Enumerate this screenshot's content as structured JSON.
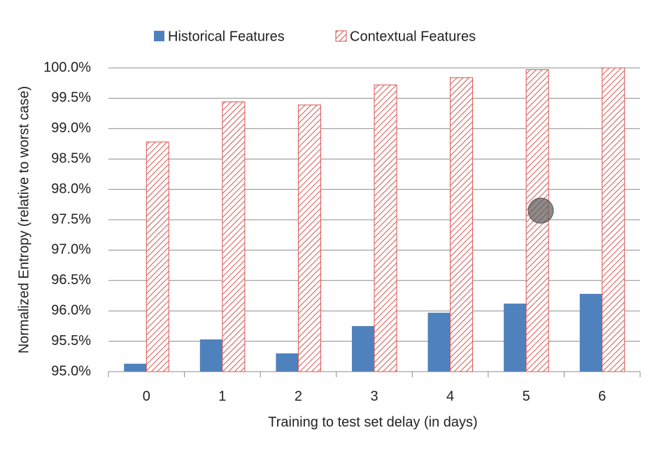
{
  "chart_data": {
    "type": "bar",
    "xlabel": "Training to test set delay (in days)",
    "ylabel": "Normalized Entropy (relative to worst case)",
    "categories": [
      "0",
      "1",
      "2",
      "3",
      "4",
      "5",
      "6"
    ],
    "series": [
      {
        "name": "Historical Features",
        "color": "#4f81bd",
        "values": [
          95.13,
          95.53,
          95.3,
          95.75,
          95.97,
          96.12,
          96.28
        ]
      },
      {
        "name": "Contextual Features",
        "color": "#d9534f",
        "pattern": "hatch",
        "values": [
          98.78,
          99.44,
          99.39,
          99.72,
          99.84,
          99.97,
          100.0
        ]
      }
    ],
    "ylim": [
      95,
      100
    ],
    "yticks": [
      {
        "value": 95,
        "label": "95.0%"
      },
      {
        "value": 95.5,
        "label": "95.5%"
      },
      {
        "value": 96,
        "label": "96.0%"
      },
      {
        "value": 96.5,
        "label": "96.5%"
      },
      {
        "value": 97,
        "label": "97.0%"
      },
      {
        "value": 97.5,
        "label": "97.5%"
      },
      {
        "value": 98,
        "label": "98.0%"
      },
      {
        "value": 98.5,
        "label": "98.5%"
      },
      {
        "value": 99,
        "label": "99.0%"
      },
      {
        "value": 99.5,
        "label": "99.5%"
      },
      {
        "value": 100,
        "label": "100.0%"
      }
    ],
    "grid": true,
    "legend": "top"
  }
}
